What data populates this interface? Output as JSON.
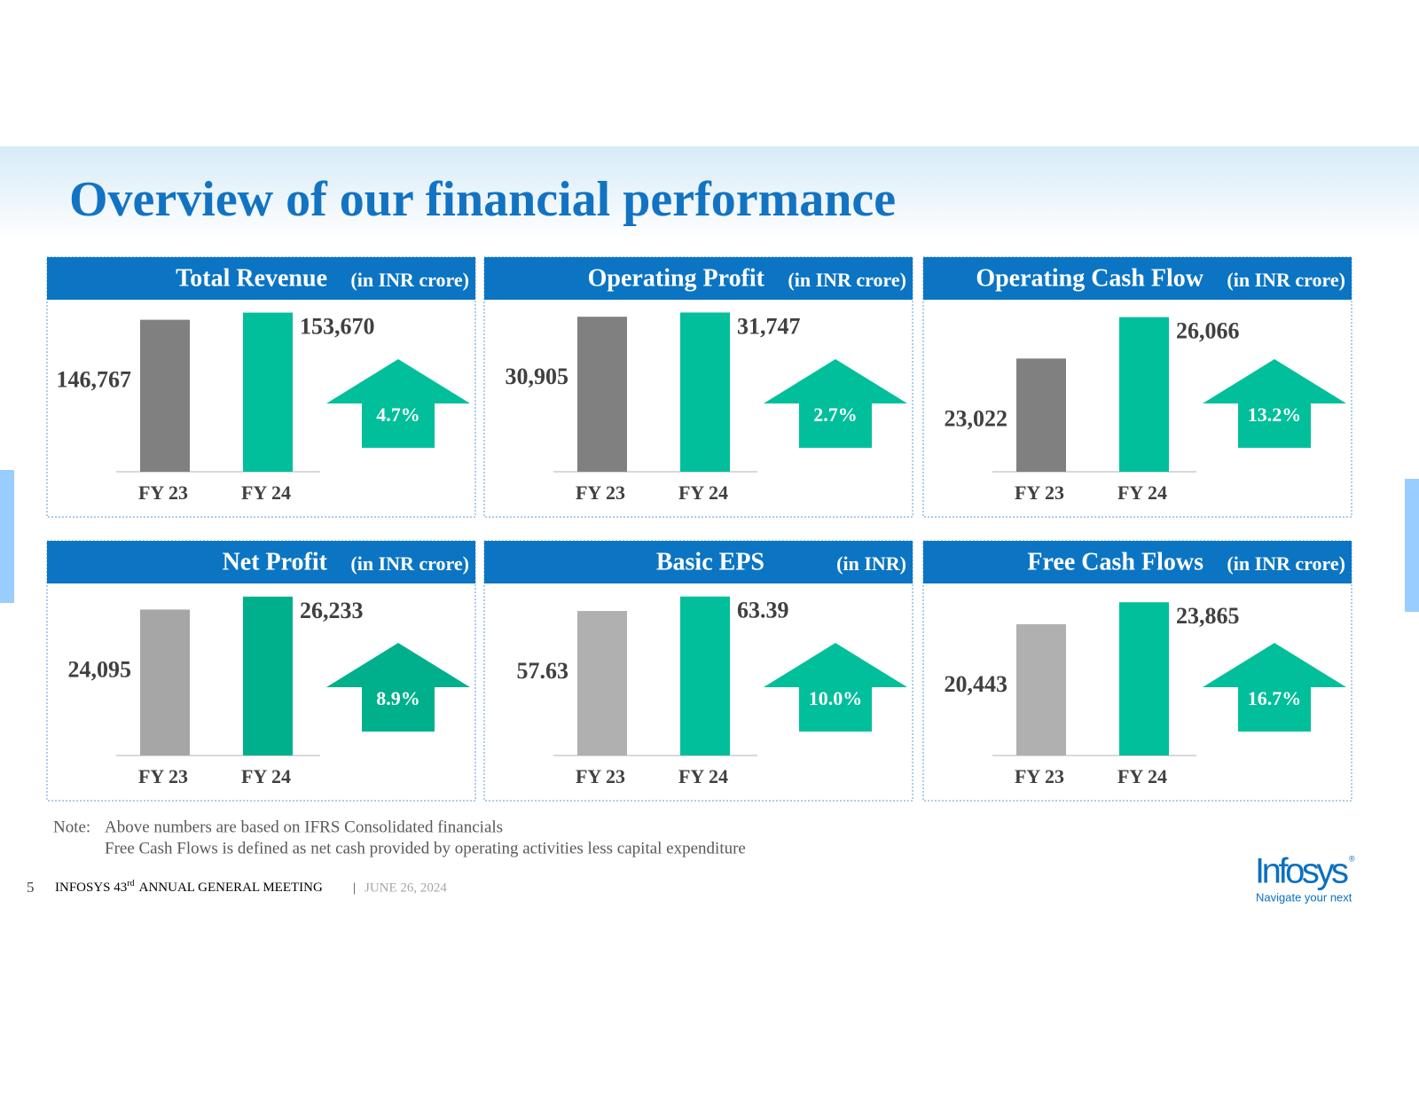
{
  "title": "Overview of our financial performance",
  "chart_data": [
    {
      "type": "bar",
      "title": "Total Revenue",
      "unit": "(in INR crore)",
      "categories": [
        "FY 23",
        "FY 24"
      ],
      "values": [
        146767,
        153670
      ],
      "value_labels": [
        "146,767",
        "153,670"
      ],
      "colors": [
        "#808080",
        "#00bf9a"
      ],
      "ylim": [
        0,
        155000
      ],
      "annotation": "4.7%"
    },
    {
      "type": "bar",
      "title": "Operating Profit",
      "unit": "(in INR crore)",
      "categories": [
        "FY 23",
        "FY 24"
      ],
      "values": [
        30905,
        31747
      ],
      "value_labels": [
        "30,905",
        "31,747"
      ],
      "colors": [
        "#808080",
        "#00bf9a"
      ],
      "ylim": [
        0,
        32000
      ],
      "annotation": "2.7%"
    },
    {
      "type": "bar",
      "title": "Operating Cash Flow",
      "unit": "(in INR crore)",
      "categories": [
        "FY 23",
        "FY 24"
      ],
      "values": [
        23022,
        26066
      ],
      "value_labels": [
        "23,022",
        "26,066"
      ],
      "colors": [
        "#808080",
        "#00bf9a"
      ],
      "ylim": [
        14700,
        26500
      ],
      "annotation": "13.2%"
    },
    {
      "type": "bar",
      "title": "Net Profit",
      "unit": "(in INR crore)",
      "categories": [
        "FY 23",
        "FY 24"
      ],
      "values": [
        24095,
        26233
      ],
      "value_labels": [
        "24,095",
        "26,233"
      ],
      "colors": [
        "#a6a6a6",
        "#00b08c"
      ],
      "ylim": [
        0,
        26500
      ],
      "annotation": "8.9%"
    },
    {
      "type": "bar",
      "title": "Basic EPS",
      "unit": "(in INR)",
      "categories": [
        "FY 23",
        "FY 24"
      ],
      "values": [
        57.63,
        63.39
      ],
      "value_labels": [
        "57.63",
        "63.39"
      ],
      "colors": [
        "#b0b0b0",
        "#00bf9a"
      ],
      "ylim": [
        0,
        64
      ],
      "annotation": "10.0%"
    },
    {
      "type": "bar",
      "title": "Free Cash Flows",
      "unit": "(in INR crore)",
      "categories": [
        "FY 23",
        "FY 24"
      ],
      "values": [
        20443,
        23865
      ],
      "value_labels": [
        "20,443",
        "23,865"
      ],
      "colors": [
        "#b0b0b0",
        "#00bf9a"
      ],
      "ylim": [
        0,
        25000
      ],
      "annotation": "16.7%"
    }
  ],
  "notes": {
    "label": "Note:",
    "lines": [
      "Above numbers are based on IFRS Consolidated financials",
      "Free Cash Flows is defined as net cash provided by operating activities less capital expenditure"
    ]
  },
  "footer": {
    "page": "5",
    "event_pre": "INFOSYS 43",
    "event_sup": "rd",
    "event_post": "ANNUAL GENERAL MEETING",
    "separator": "|",
    "date": "JUNE 26, 2024"
  },
  "logo": {
    "name": "Infosys",
    "mark": "®",
    "tagline": "Navigate your next"
  }
}
